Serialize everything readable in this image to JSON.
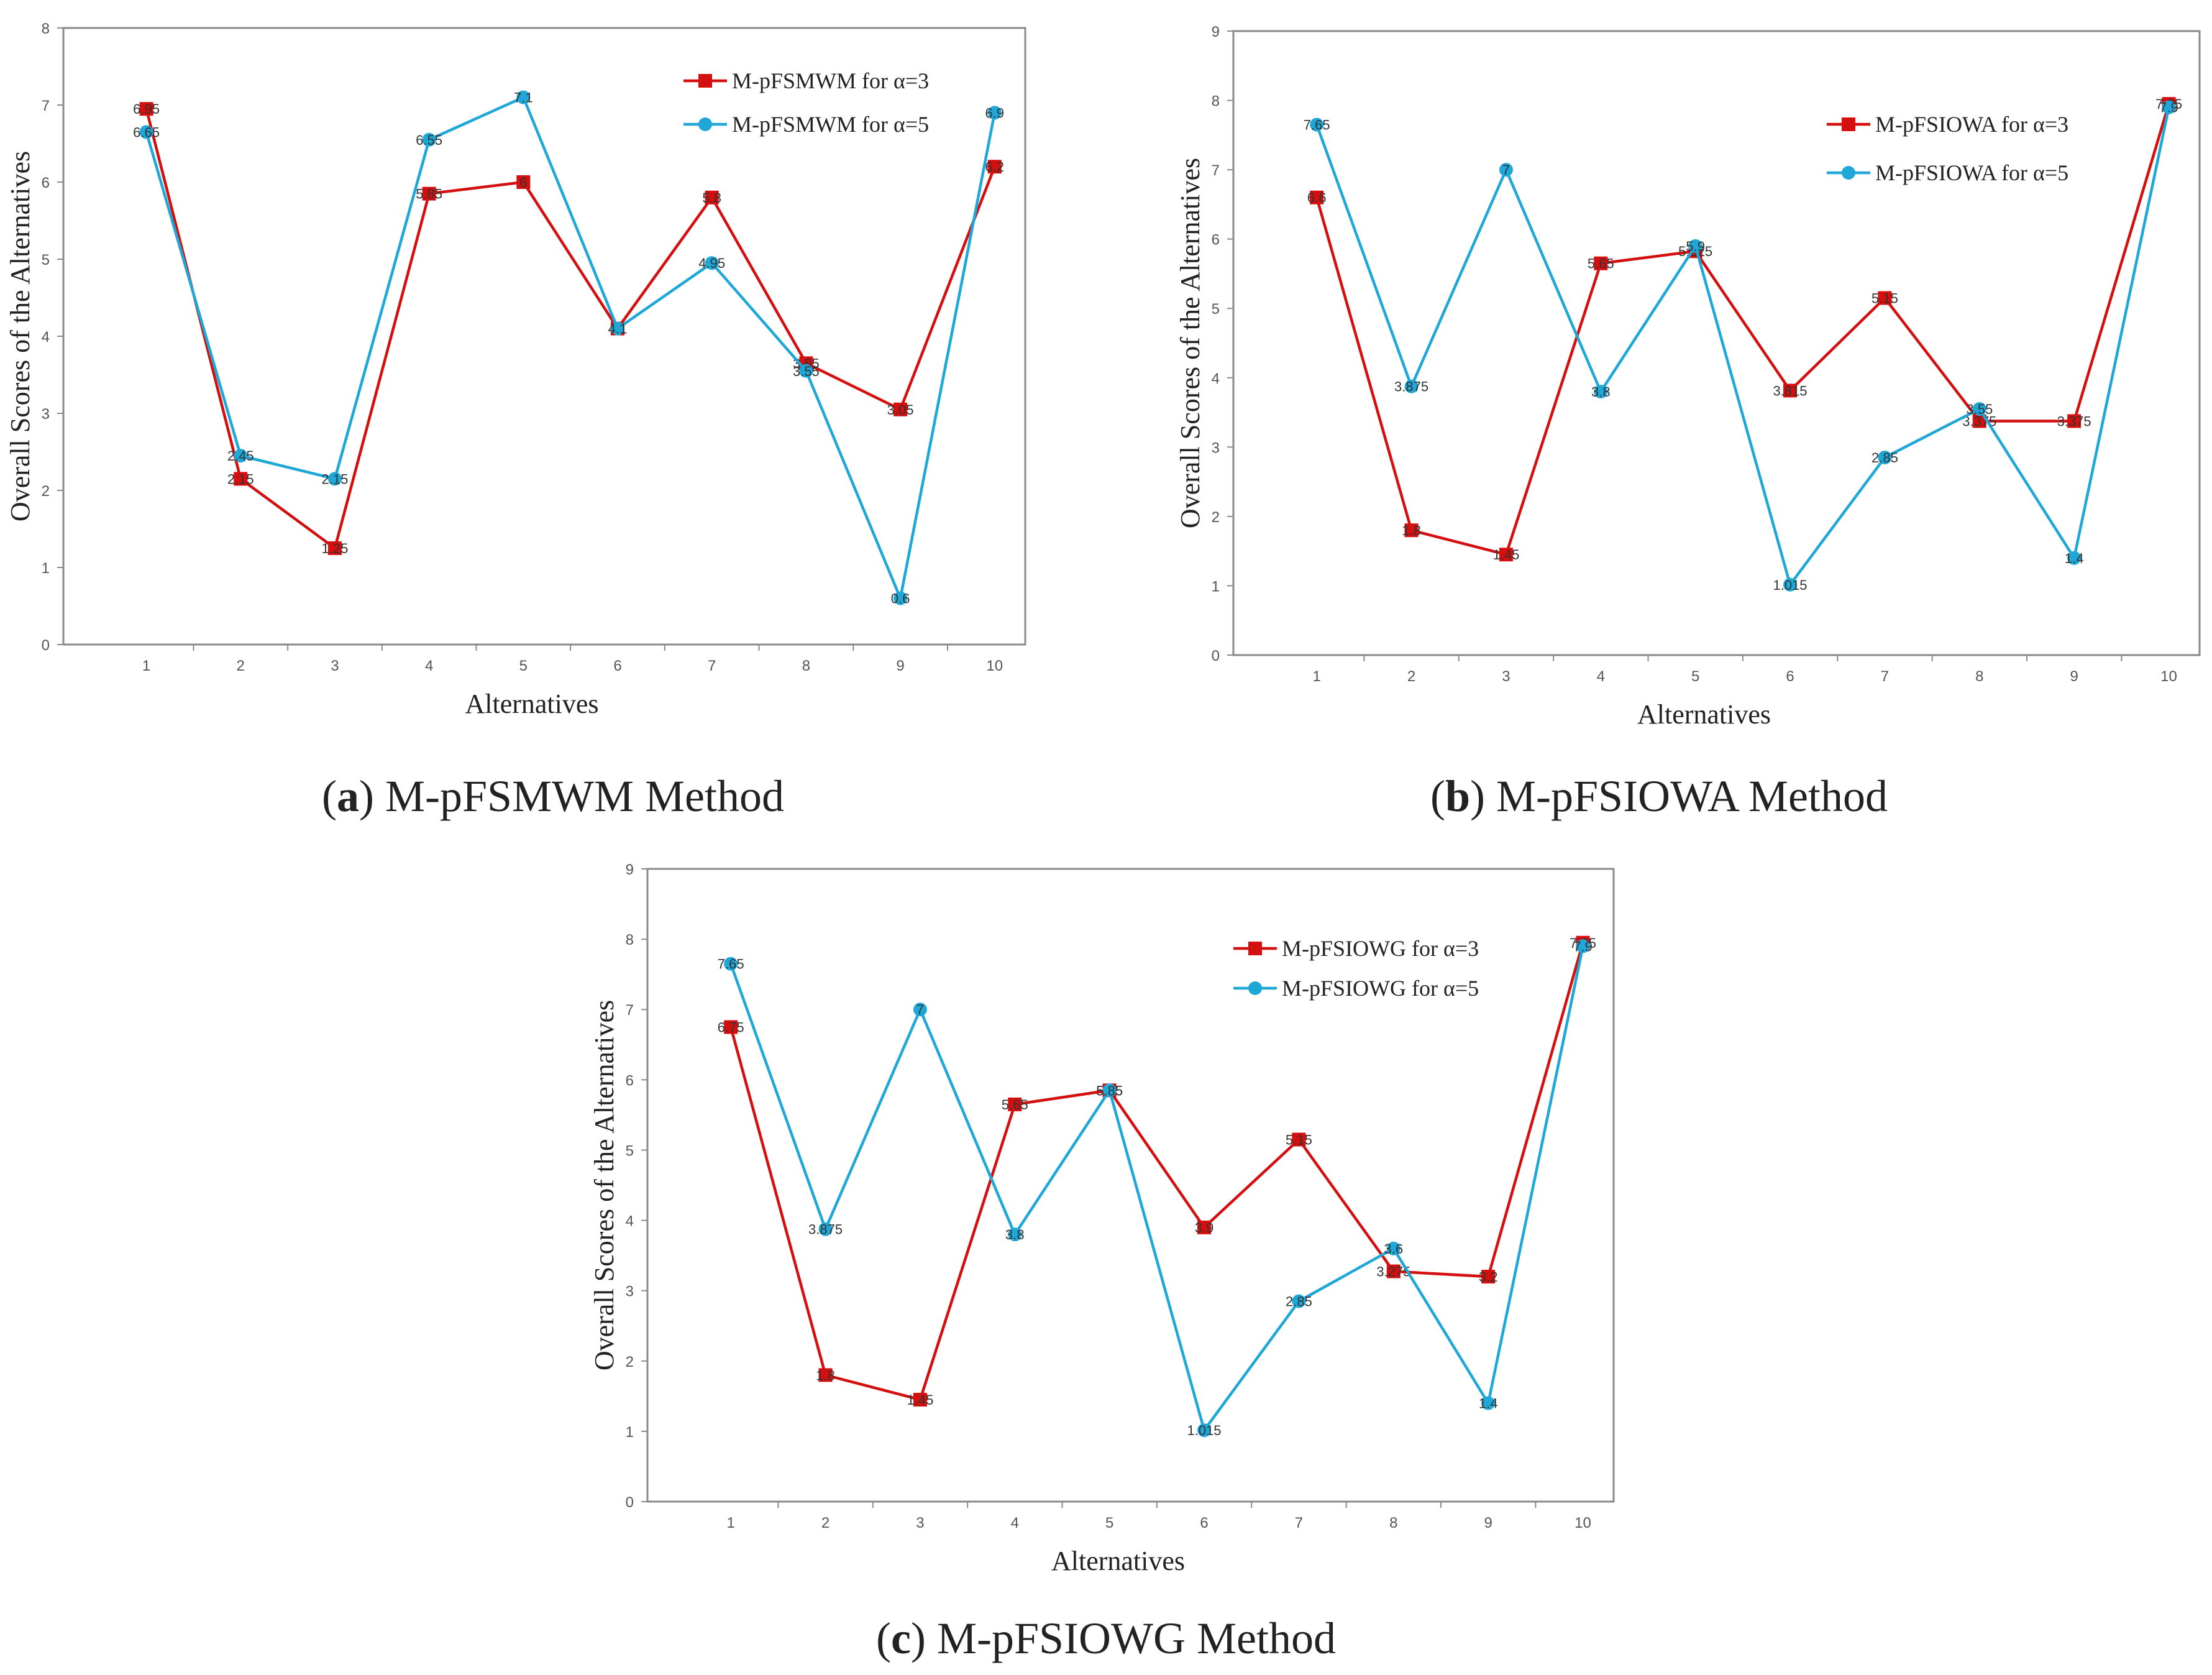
{
  "chart_data": [
    {
      "type": "line",
      "id": "a",
      "caption_letter": "a",
      "caption_text": "M-pFSMWM Method",
      "xlabel": "Alternatives",
      "ylabel": "Overall Scores of the Alternatives",
      "ylim": [
        0,
        8
      ],
      "yticks": [
        0,
        1,
        2,
        3,
        4,
        5,
        6,
        7,
        8
      ],
      "categories": [
        "1",
        "2",
        "3",
        "4",
        "5",
        "6",
        "7",
        "8",
        "9",
        "10"
      ],
      "legend_position": "top-right",
      "series": [
        {
          "name": "M-pFSMWM for α=3",
          "color": "#d40f0f",
          "marker": "square",
          "values": [
            6.95,
            2.15,
            1.25,
            5.85,
            6.0,
            4.1,
            5.8,
            3.65,
            3.05,
            6.2
          ],
          "labels": [
            "6.95",
            "2.15",
            "1.25",
            "5.85",
            "6",
            "4.1",
            "5.8",
            "3.65",
            "3.05",
            "6.2"
          ]
        },
        {
          "name": "M-pFSMWM for α=5",
          "color": "#1fa7d8",
          "marker": "circle",
          "values": [
            6.65,
            2.45,
            2.15,
            6.55,
            7.1,
            4.1,
            4.95,
            3.55,
            0.6,
            6.9
          ],
          "labels": [
            "6.65",
            "2.45",
            "2.15",
            "6.55",
            "7.1",
            "4.1",
            "4.95",
            "3.55",
            "0.6",
            "6.9"
          ]
        }
      ]
    },
    {
      "type": "line",
      "id": "b",
      "caption_letter": "b",
      "caption_text": "M-pFSIOWA Method",
      "xlabel": "Alternatives",
      "ylabel": "Overall Scores of the Alternatives",
      "ylim": [
        0,
        9
      ],
      "yticks": [
        0,
        1,
        2,
        3,
        4,
        5,
        6,
        7,
        8,
        9
      ],
      "categories": [
        "1",
        "2",
        "3",
        "4",
        "5",
        "6",
        "7",
        "8",
        "9",
        "10"
      ],
      "legend_position": "top-right",
      "series": [
        {
          "name": "M-pFSIOWA for α=3",
          "color": "#d40f0f",
          "marker": "square",
          "values": [
            6.6,
            1.8,
            1.45,
            5.65,
            5.825,
            3.815,
            5.15,
            3.375,
            3.375,
            7.95
          ],
          "labels": [
            "6.6",
            "1.8",
            "1.45",
            "5.65",
            "5.825",
            "3.815",
            "5.15",
            "3.375",
            "3.375",
            "7.95"
          ]
        },
        {
          "name": "M-pFSIOWA for α=5",
          "color": "#1fa7d8",
          "marker": "circle",
          "values": [
            7.65,
            3.875,
            7.0,
            3.8,
            5.9,
            1.015,
            2.85,
            3.55,
            1.4,
            7.9
          ],
          "labels": [
            "7.65",
            "3.875",
            "7",
            "3.8",
            "5.9",
            "1.015",
            "2.85",
            "3.55",
            "1.4",
            "7.9"
          ]
        }
      ]
    },
    {
      "type": "line",
      "id": "c",
      "caption_letter": "c",
      "caption_text": "M-pFSIOWG Method",
      "xlabel": "Alternatives",
      "ylabel": "Overall Scores of the Alternatives",
      "ylim": [
        0,
        9
      ],
      "yticks": [
        0,
        1,
        2,
        3,
        4,
        5,
        6,
        7,
        8,
        9
      ],
      "categories": [
        "1",
        "2",
        "3",
        "4",
        "5",
        "6",
        "7",
        "8",
        "9",
        "10"
      ],
      "legend_position": "top-right",
      "series": [
        {
          "name": "M-pFSIOWG for α=3",
          "color": "#d40f0f",
          "marker": "square",
          "values": [
            6.75,
            1.8,
            1.45,
            5.65,
            5.85,
            3.9,
            5.15,
            3.275,
            3.2,
            7.95
          ],
          "labels": [
            "6.75",
            "1.8",
            "1.45",
            "5.65",
            "5.85",
            "3.9",
            "5.15",
            "3.275",
            "3.2",
            "7.95"
          ]
        },
        {
          "name": "M-pFSIOWG for α=5",
          "color": "#1fa7d8",
          "marker": "circle",
          "values": [
            7.65,
            3.875,
            7.0,
            3.8,
            5.85,
            1.015,
            2.85,
            3.6,
            1.4,
            7.9
          ],
          "labels": [
            "7.65",
            "3.875",
            "7",
            "3.8",
            "5.85",
            "1.015",
            "2.85",
            "3.6",
            "1.4",
            "7.9"
          ]
        }
      ]
    }
  ]
}
